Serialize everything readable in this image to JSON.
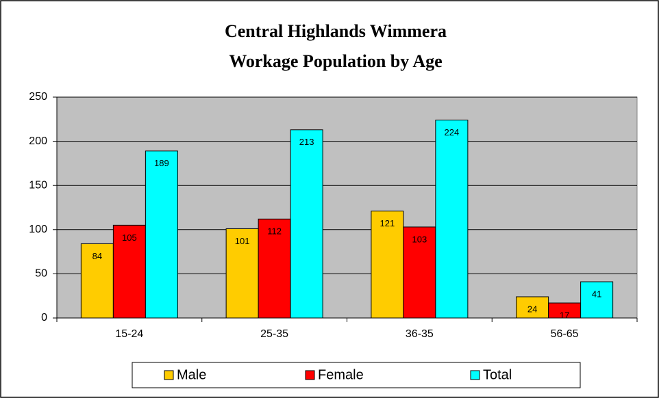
{
  "chart_data": {
    "type": "bar",
    "title": [
      "Central Highlands Wimmera",
      "Workage Population by Age"
    ],
    "categories": [
      "15-24",
      "25-35",
      "36-35",
      "56-65"
    ],
    "series": [
      {
        "name": "Male",
        "color": "#ffcc00",
        "values": [
          84,
          101,
          121,
          24
        ]
      },
      {
        "name": "Female",
        "color": "#ff0000",
        "values": [
          105,
          112,
          103,
          17
        ]
      },
      {
        "name": "Total",
        "color": "#00ffff",
        "values": [
          189,
          213,
          224,
          41
        ]
      }
    ],
    "ylim": [
      0,
      250
    ],
    "yticks": [
      0,
      50,
      100,
      150,
      200,
      250
    ],
    "grid": true,
    "legend": "bottom"
  }
}
